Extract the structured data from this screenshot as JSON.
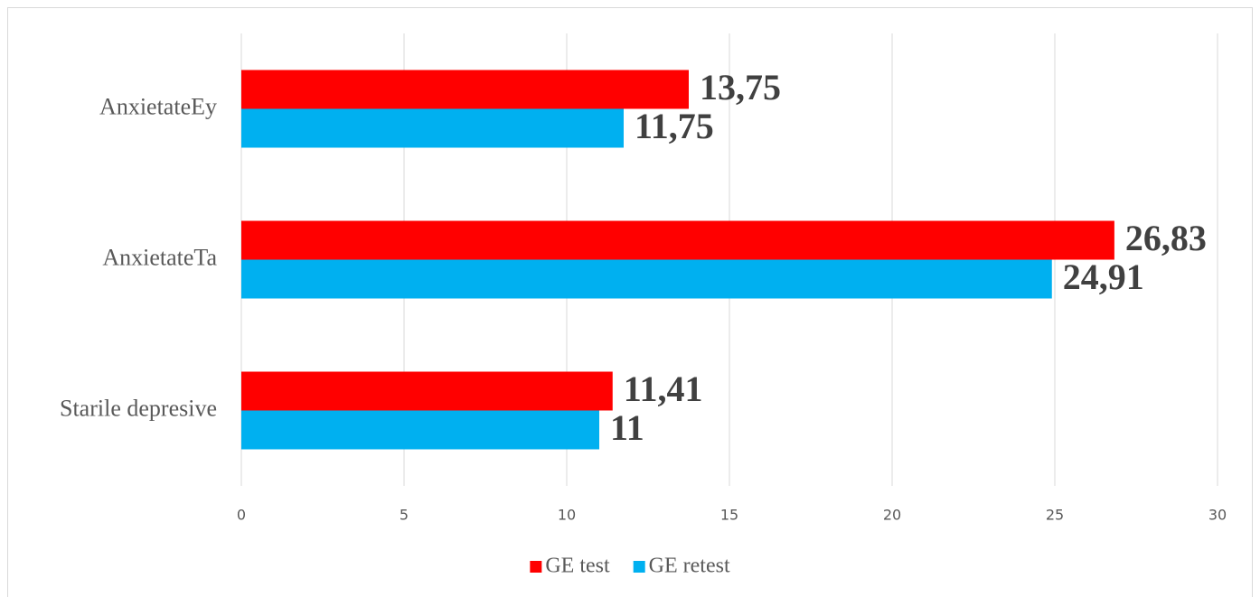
{
  "chart_data": {
    "type": "bar",
    "orientation": "horizontal",
    "categories": [
      "AnxietateEy",
      "AnxietateTa",
      "Starile depresive"
    ],
    "series": [
      {
        "name": "GE test",
        "color": "#ff0000",
        "values": [
          13.75,
          26.83,
          11.41
        ],
        "value_labels": [
          "13,75",
          "26,83",
          "11,41"
        ]
      },
      {
        "name": "GE retest",
        "color": "#00b0f0",
        "values": [
          11.75,
          24.91,
          11
        ],
        "value_labels": [
          "11,75",
          "24,91",
          "11"
        ]
      }
    ],
    "xlim": [
      0,
      30
    ],
    "xticks": [
      0,
      5,
      10,
      15,
      20,
      25,
      30
    ],
    "grid": true,
    "legend": "bottom"
  }
}
